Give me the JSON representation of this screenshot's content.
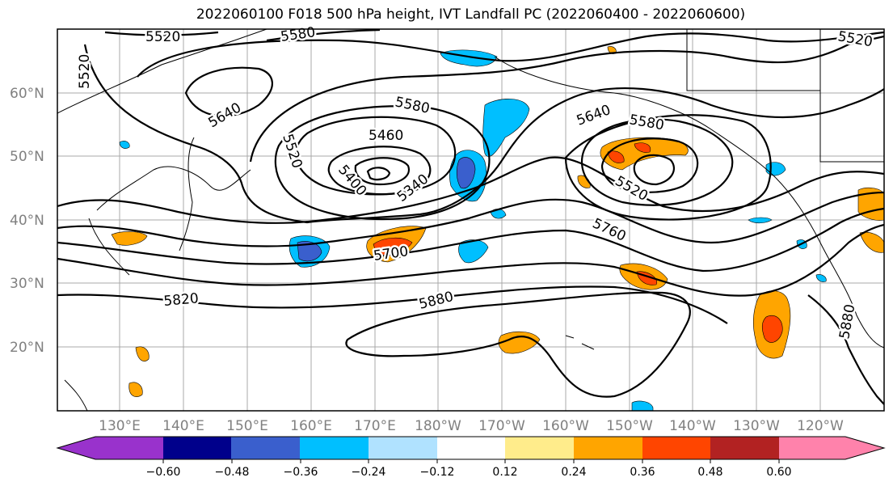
{
  "title": "2022060100 F018 500 hPa height, IVT Landfall PC (2022060400 - 2022060600)",
  "lat_labels": [
    "60°N",
    "50°N",
    "40°N",
    "30°N",
    "20°N"
  ],
  "lon_labels": [
    "130°E",
    "140°E",
    "150°E",
    "160°E",
    "170°E",
    "180°W",
    "170°W",
    "160°W",
    "150°W",
    "140°W",
    "130°W",
    "120°W"
  ],
  "contour_labels": [
    "5520",
    "5580",
    "5520",
    "5640",
    "5460",
    "5520",
    "5400",
    "5340",
    "5580",
    "5580",
    "5640",
    "5520",
    "5760",
    "5700",
    "5820",
    "5880",
    "5880",
    "5520"
  ],
  "colorbar": {
    "tick_labels": [
      "−0.60",
      "−0.48",
      "−0.36",
      "−0.24",
      "−0.12",
      "0.12",
      "0.24",
      "0.36",
      "0.48",
      "0.60"
    ],
    "colors": [
      "#9932cc",
      "#00008b",
      "#3a5fcd",
      "#00bfff",
      "#b0e2ff",
      "#ffffff",
      "#ffec8b",
      "#ffa500",
      "#ff4500",
      "#b22222",
      "#ff82ab"
    ]
  }
}
